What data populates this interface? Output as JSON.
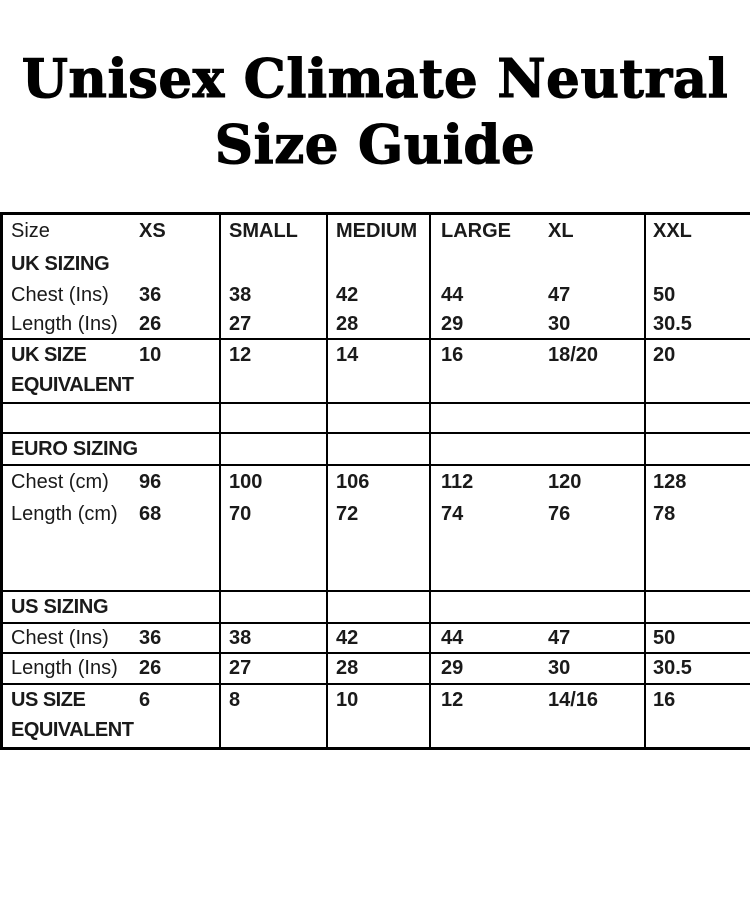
{
  "title": {
    "line1": "Unisex Climate Neutral",
    "line2": "Size Guide"
  },
  "table": {
    "header": {
      "size_label": "Size",
      "names": [
        "XS",
        "SMALL",
        "MEDIUM",
        "LARGE",
        "XL",
        "XXL"
      ]
    },
    "uk": {
      "section": "UK SIZING",
      "chest": {
        "label": "Chest (Ins)",
        "values": [
          "36",
          "38",
          "42",
          "44",
          "47",
          "50"
        ]
      },
      "length": {
        "label": "Length (Ins)",
        "values": [
          "26",
          "27",
          "28",
          "29",
          "30",
          "30.5"
        ]
      },
      "equivalent": {
        "label_line1": "UK SIZE",
        "label_line2": "EQUIVALENT",
        "values": [
          "10",
          "12",
          "14",
          "16",
          "18/20",
          "20"
        ]
      }
    },
    "euro": {
      "section": "EURO SIZING",
      "chest": {
        "label": "Chest (cm)",
        "values": [
          "96",
          "100",
          "106",
          "112",
          "120",
          "128"
        ]
      },
      "length": {
        "label": "Length (cm)",
        "values": [
          "68",
          "70",
          "72",
          "74",
          "76",
          "78"
        ]
      }
    },
    "us": {
      "section": "US SIZING",
      "chest": {
        "label": "Chest (Ins)",
        "values": [
          "36",
          "38",
          "42",
          "44",
          "47",
          "50"
        ]
      },
      "length": {
        "label": "Length (Ins)",
        "values": [
          "26",
          "27",
          "28",
          "29",
          "30",
          "30.5"
        ]
      },
      "equivalent": {
        "label_line1": "US SIZE",
        "label_line2": "EQUIVALENT",
        "values": [
          "6",
          "8",
          "10",
          "12",
          "14/16",
          "16"
        ]
      }
    }
  },
  "colors": {
    "background": "#ffffff",
    "text": "#1a1a1a",
    "border": "#000000",
    "title": "#000000"
  }
}
